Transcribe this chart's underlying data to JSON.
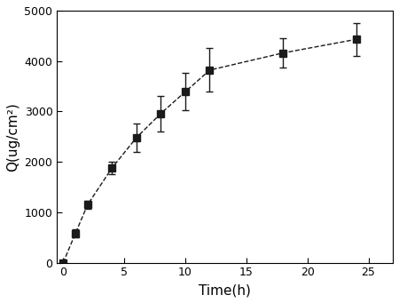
{
  "x": [
    0,
    1,
    2,
    4,
    6,
    8,
    10,
    12,
    18,
    24
  ],
  "y": [
    0,
    580,
    1150,
    1880,
    2480,
    2960,
    3390,
    3820,
    4160,
    4430
  ],
  "yerr": [
    0,
    80,
    80,
    130,
    280,
    350,
    370,
    430,
    290,
    330
  ],
  "xlabel": "Time(h)",
  "ylabel": "Q(ug/cm²)",
  "xlim": [
    -0.5,
    27
  ],
  "ylim": [
    0,
    5000
  ],
  "xticks": [
    0,
    5,
    10,
    15,
    20,
    25
  ],
  "yticks": [
    0,
    1000,
    2000,
    3000,
    4000,
    5000
  ],
  "line_color": "#1a1a1a",
  "marker": "s",
  "markersize": 6,
  "capsize": 3,
  "linewidth": 1.0,
  "elinewidth": 1.0,
  "linestyle": "--",
  "background_color": "#ffffff",
  "figsize": [
    4.5,
    3.41
  ],
  "dpi": 100
}
